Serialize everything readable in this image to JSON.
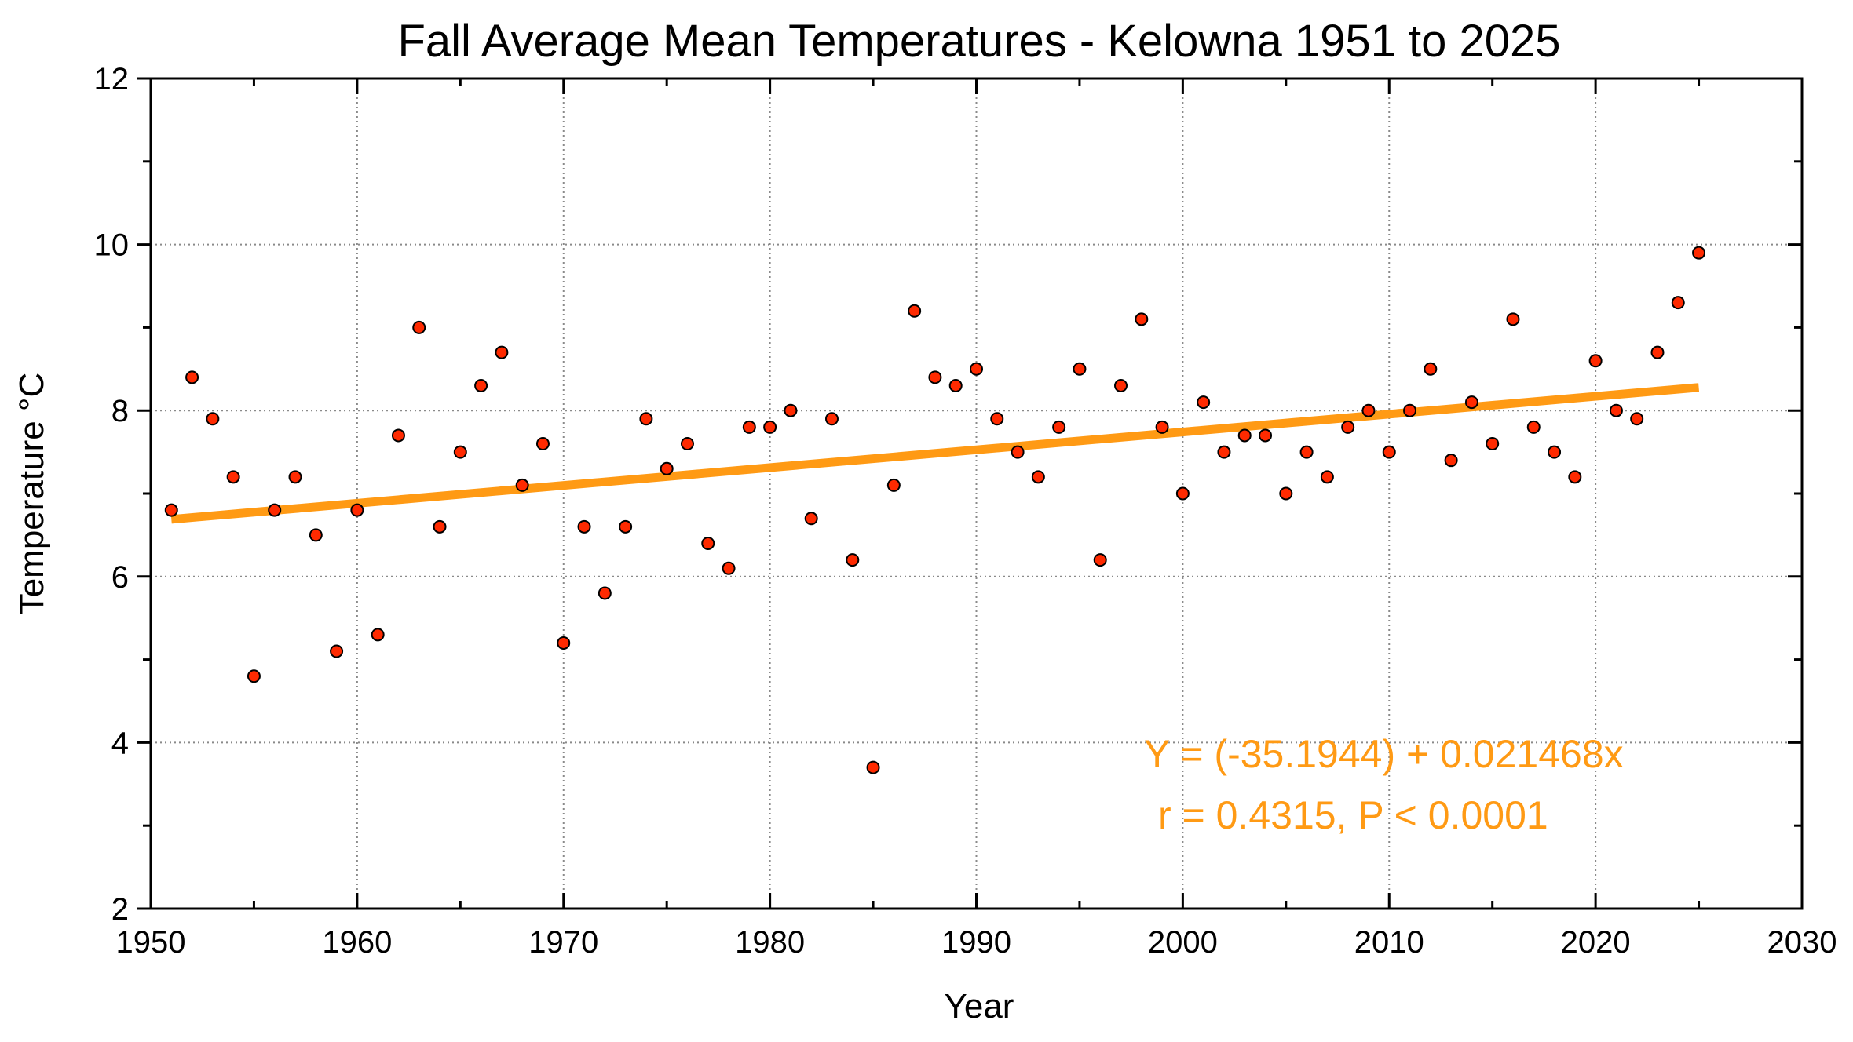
{
  "chart_data": {
    "type": "scatter",
    "title": "Fall Average Mean Temperatures - Kelowna 1951 to 2025",
    "xlabel": "Year",
    "ylabel": "Temperature °C",
    "xlim": [
      1950,
      2030
    ],
    "ylim": [
      2,
      12
    ],
    "x_ticks": [
      "1950",
      "1960",
      "1970",
      "1980",
      "1990",
      "2000",
      "2010",
      "2020",
      "2030"
    ],
    "y_ticks": [
      "2",
      "4",
      "6",
      "8",
      "10",
      "12"
    ],
    "grid": true,
    "colors": {
      "marker_fill": "#ff2a00",
      "marker_edge": "#000000",
      "trend_line": "#ff9a14",
      "annotation": "#ff9a14"
    },
    "series": [
      {
        "x": [
          1951,
          1952,
          1953,
          1954,
          1955,
          1956,
          1957,
          1958,
          1959,
          1960,
          1961,
          1962,
          1963,
          1964,
          1965,
          1966,
          1967,
          1968,
          1969,
          1970,
          1971,
          1972,
          1973,
          1974,
          1975,
          1976,
          1977,
          1978,
          1979,
          1980,
          1981,
          1982,
          1983,
          1984,
          1985,
          1986,
          1987,
          1988,
          1989,
          1990,
          1991,
          1992,
          1993,
          1994,
          1995,
          1996,
          1997,
          1998,
          1999,
          2000,
          2001,
          2002,
          2003,
          2004,
          2005,
          2006,
          2007,
          2008,
          2009,
          2010,
          2011,
          2012,
          2013,
          2014,
          2015,
          2016,
          2017,
          2018,
          2019,
          2020,
          2021,
          2022,
          2023,
          2024,
          2025
        ],
        "y": [
          6.8,
          8.4,
          7.9,
          7.2,
          4.8,
          6.8,
          7.2,
          6.5,
          5.1,
          6.8,
          5.3,
          7.7,
          9.0,
          6.6,
          7.5,
          8.3,
          8.7,
          7.1,
          7.6,
          5.2,
          6.6,
          5.8,
          6.6,
          7.9,
          7.3,
          7.6,
          6.4,
          6.1,
          7.8,
          7.8,
          8.0,
          6.7,
          7.9,
          6.2,
          3.7,
          7.1,
          9.2,
          8.4,
          8.3,
          8.5,
          7.9,
          7.5,
          7.2,
          7.8,
          8.5,
          6.2,
          8.3,
          9.1,
          7.8,
          7.0,
          8.1,
          7.5,
          7.7,
          7.7,
          7.0,
          7.5,
          7.2,
          7.8,
          8.0,
          7.5,
          8.0,
          8.5,
          7.4,
          8.1,
          7.6,
          9.1,
          7.8,
          7.5,
          7.2,
          8.6,
          8.0,
          7.9,
          8.7,
          9.3,
          9.9
        ]
      }
    ],
    "trend": {
      "intercept": -35.1944,
      "slope": 0.021468,
      "x_start": 1951,
      "x_end": 2025
    },
    "annotations": {
      "equation": "Y = (-35.1944) + 0.021468x",
      "stats": "r = 0.4315, P < 0.0001"
    }
  }
}
